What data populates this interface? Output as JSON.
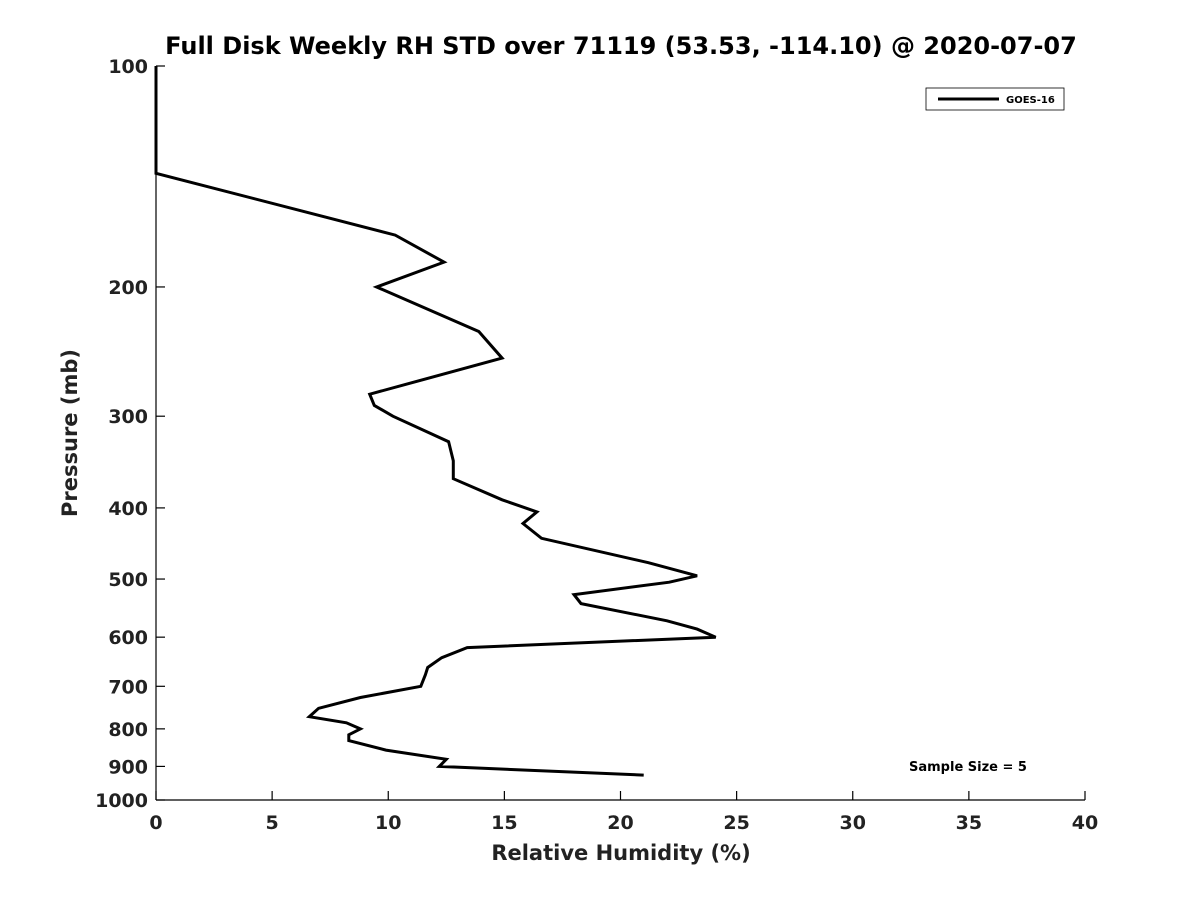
{
  "chart_data": {
    "type": "line",
    "title": "Full Disk Weekly RH STD over 71119 (53.53, -114.10) @ 2020-07-07",
    "xlabel": "Relative Humidity (%)",
    "ylabel": "Pressure (mb)",
    "xlim": [
      0,
      40
    ],
    "ylim": [
      100,
      1000
    ],
    "y_scale": "log",
    "y_inverted": true,
    "grid": false,
    "legend_position": "top-right",
    "x_ticks": [
      0,
      5,
      10,
      15,
      20,
      25,
      30,
      35,
      40
    ],
    "x_tick_labels": [
      "0",
      "5",
      "10",
      "15",
      "20",
      "25",
      "30",
      "35",
      "40"
    ],
    "y_ticks": [
      100,
      200,
      300,
      400,
      500,
      600,
      700,
      800,
      900,
      1000
    ],
    "y_tick_labels": [
      "100",
      "200",
      "300",
      "400",
      "500",
      "600",
      "700",
      "800",
      "900",
      "1000"
    ],
    "annotation": "Sample Size = 5",
    "series": [
      {
        "name": "GOES-16",
        "color": "#000000",
        "points": [
          [
            0.0,
            100
          ],
          [
            0.0,
            140
          ],
          [
            10.3,
            170
          ],
          [
            12.4,
            185
          ],
          [
            9.5,
            200
          ],
          [
            13.9,
            230
          ],
          [
            14.9,
            250
          ],
          [
            9.2,
            280
          ],
          [
            9.4,
            290
          ],
          [
            10.2,
            300
          ],
          [
            12.6,
            325
          ],
          [
            12.8,
            345
          ],
          [
            12.8,
            365
          ],
          [
            14.9,
            390
          ],
          [
            16.4,
            405
          ],
          [
            15.8,
            420
          ],
          [
            16.6,
            440
          ],
          [
            21.2,
            475
          ],
          [
            23.3,
            495
          ],
          [
            22.1,
            505
          ],
          [
            18.0,
            525
          ],
          [
            18.3,
            540
          ],
          [
            22.0,
            570
          ],
          [
            23.3,
            585
          ],
          [
            24.1,
            600
          ],
          [
            13.4,
            620
          ],
          [
            12.3,
            640
          ],
          [
            11.7,
            660
          ],
          [
            11.6,
            675
          ],
          [
            11.4,
            700
          ],
          [
            8.8,
            725
          ],
          [
            7.0,
            750
          ],
          [
            6.6,
            770
          ],
          [
            8.2,
            785
          ],
          [
            8.8,
            800
          ],
          [
            8.3,
            815
          ],
          [
            8.3,
            830
          ],
          [
            9.9,
            855
          ],
          [
            12.5,
            880
          ],
          [
            12.2,
            900
          ],
          [
            21.0,
            925
          ]
        ]
      }
    ]
  }
}
